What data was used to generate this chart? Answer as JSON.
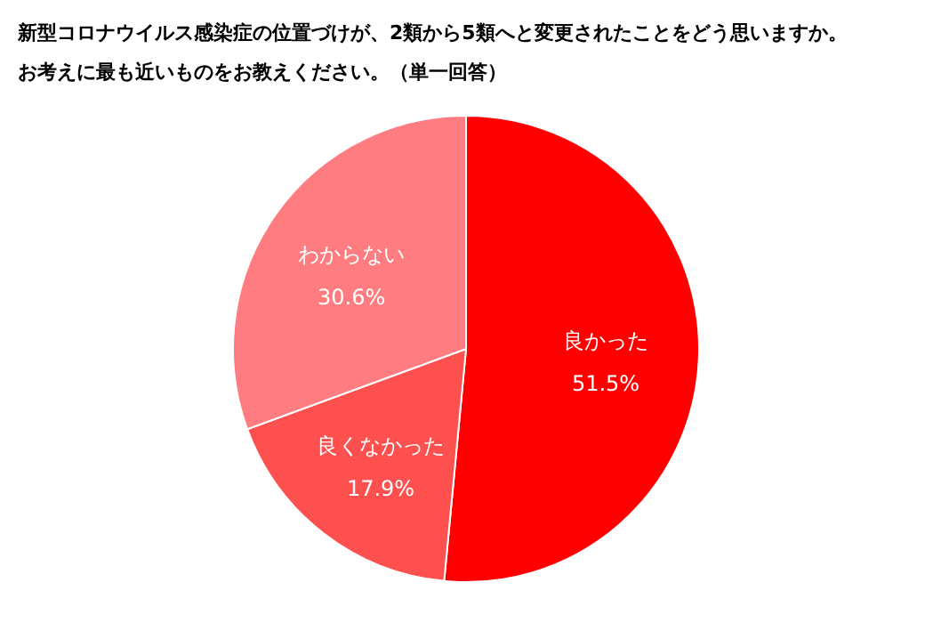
{
  "chart_data": {
    "type": "pie",
    "title": "新型コロナウイルス感染症の位置づけが、2類から5類へと変更されたことをどう思いますか。",
    "subtitle": "お考えに最も近いものをお教えください。（単一回答）",
    "categories": [
      "良かった",
      "良くなかった",
      "わからない"
    ],
    "values": [
      51.5,
      17.9,
      30.6
    ],
    "value_labels": [
      "51.5%",
      "17.9%",
      "30.6%"
    ],
    "colors": [
      "#ff0000",
      "#ff5050",
      "#ff7c80"
    ]
  }
}
